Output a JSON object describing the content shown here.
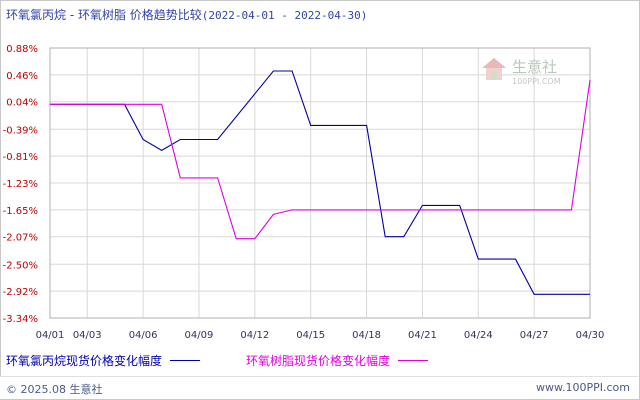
{
  "title": {
    "main": "环氧氯丙烷 - 环氧树脂 价格趋势比较",
    "range": "(2022-04-01 - 2022-04-30)"
  },
  "legend": {
    "series1": "环氧氯丙烷现货价格变化幅度",
    "series2": "环氧树脂现货价格变化幅度"
  },
  "footer": {
    "copyright": "© 2025.08 生意社",
    "site": "www.100PPI.com"
  },
  "watermark": {
    "name": "生意社",
    "url": "100PPI.COM"
  },
  "colors": {
    "series1": "#0000aa",
    "series2": "#e000e0",
    "axis_text": "#c00000",
    "grid": "#d8d8d8"
  },
  "chart_data": {
    "type": "line",
    "x_tick_labels": [
      "04/01",
      "04/03",
      "04/06",
      "04/09",
      "04/12",
      "04/15",
      "04/18",
      "04/21",
      "04/24",
      "04/27",
      "04/30"
    ],
    "x_tick_days": [
      1,
      3,
      6,
      9,
      12,
      15,
      18,
      21,
      24,
      27,
      30
    ],
    "xlim": [
      1,
      30
    ],
    "y_tick_labels": [
      "0.88%",
      "0.46%",
      "0.04%",
      "-0.39%",
      "-0.81%",
      "-1.23%",
      "-1.65%",
      "-2.07%",
      "-2.50%",
      "-2.92%",
      "-3.34%"
    ],
    "y_tick_values": [
      0.88,
      0.46,
      0.04,
      -0.39,
      -0.81,
      -1.23,
      -1.65,
      -2.07,
      -2.5,
      -2.92,
      -3.34
    ],
    "ylim": [
      -3.34,
      0.88
    ],
    "grid": true,
    "legend_position": "bottom",
    "series": [
      {
        "name": "环氧氯丙烷现货价格变化幅度",
        "color": "#0000aa",
        "points": [
          [
            1,
            0.0
          ],
          [
            5,
            0.0
          ],
          [
            6,
            -0.55
          ],
          [
            7,
            -0.72
          ],
          [
            8,
            -0.55
          ],
          [
            10,
            -0.55
          ],
          [
            13,
            0.52
          ],
          [
            14,
            0.52
          ],
          [
            15,
            -0.33
          ],
          [
            18,
            -0.33
          ],
          [
            19,
            -2.07
          ],
          [
            20,
            -2.07
          ],
          [
            21,
            -1.58
          ],
          [
            23,
            -1.58
          ],
          [
            24,
            -2.42
          ],
          [
            26,
            -2.42
          ],
          [
            27,
            -2.97
          ],
          [
            30,
            -2.97
          ]
        ]
      },
      {
        "name": "环氧树脂现货价格变化幅度",
        "color": "#e000e0",
        "points": [
          [
            1,
            0.0
          ],
          [
            7,
            0.0
          ],
          [
            8,
            -1.15
          ],
          [
            10,
            -1.15
          ],
          [
            11,
            -2.1
          ],
          [
            12,
            -2.1
          ],
          [
            13,
            -1.72
          ],
          [
            14,
            -1.65
          ],
          [
            29,
            -1.65
          ],
          [
            30,
            0.38
          ]
        ]
      }
    ]
  }
}
